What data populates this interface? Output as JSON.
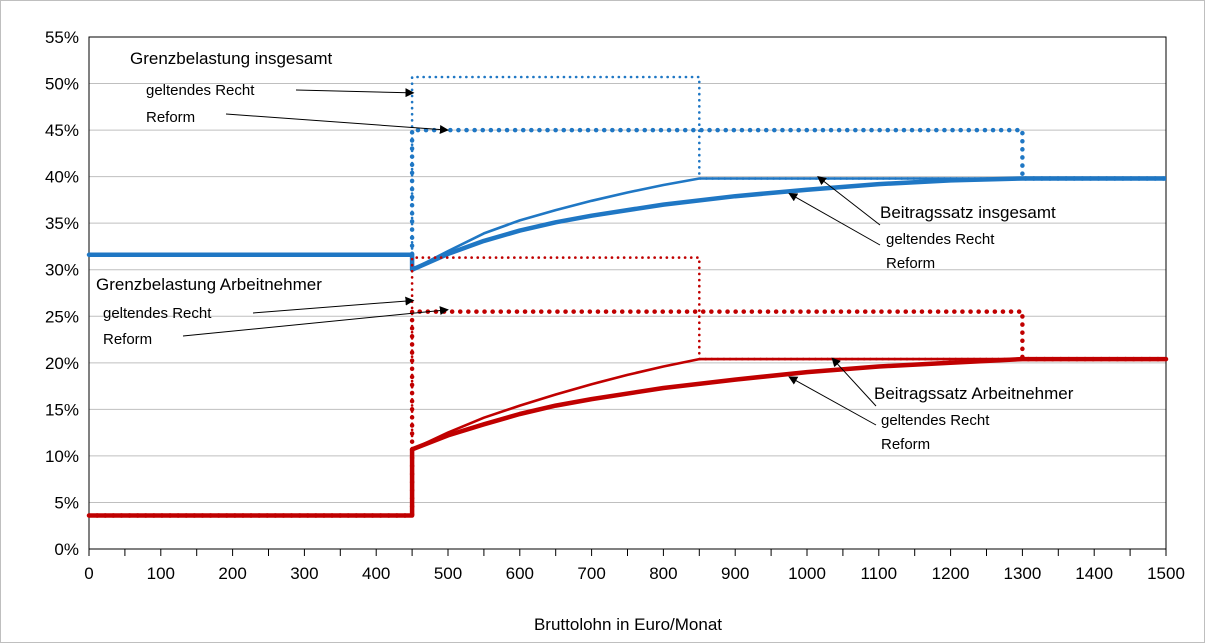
{
  "chart_data": {
    "type": "line",
    "title": "",
    "xlabel": "Bruttolohn in Euro/Monat",
    "ylabel": "",
    "xlim": [
      0,
      1500
    ],
    "ylim": [
      0,
      0.55
    ],
    "x_ticks": [
      0,
      100,
      200,
      300,
      400,
      500,
      600,
      700,
      800,
      900,
      1000,
      1100,
      1200,
      1300,
      1400,
      1500
    ],
    "x_tick_labels": [
      "0",
      "100",
      "200",
      "300",
      "400",
      "500",
      "600",
      "700",
      "800",
      "900",
      "1000",
      "1100",
      "1200",
      "1300",
      "1400",
      "1500"
    ],
    "y_ticks": [
      0,
      0.05,
      0.1,
      0.15,
      0.2,
      0.25,
      0.3,
      0.35,
      0.4,
      0.45,
      0.5,
      0.55
    ],
    "y_tick_labels": [
      "0%",
      "5%",
      "10%",
      "15%",
      "20%",
      "25%",
      "30%",
      "35%",
      "40%",
      "45%",
      "50%",
      "55%"
    ],
    "grid": "horizontal",
    "legend": "none",
    "colors": {
      "blue": "#1f77c4",
      "red": "#c00000"
    },
    "series": [
      {
        "key": "gi_recht",
        "group": "Grenzbelastung insgesamt",
        "variant": "geltendes Recht",
        "color": "#1f77c4",
        "style": "dotted",
        "width": 2.6,
        "x": [
          0,
          450,
          450,
          850,
          850,
          1500
        ],
        "y": [
          0.316,
          0.316,
          0.507,
          0.507,
          0.398,
          0.398
        ]
      },
      {
        "key": "gi_reform",
        "group": "Grenzbelastung insgesamt",
        "variant": "Reform",
        "color": "#1f77c4",
        "style": "dotted",
        "width": 4.5,
        "x": [
          0,
          450,
          450,
          1300,
          1300,
          1500
        ],
        "y": [
          0.316,
          0.316,
          0.45,
          0.45,
          0.398,
          0.398
        ]
      },
      {
        "key": "bi_recht",
        "group": "Beitragssatz insgesamt",
        "variant": "geltendes Recht",
        "color": "#1f77c4",
        "style": "solid",
        "width": 2.6,
        "x": [
          0,
          450,
          450,
          500,
          550,
          600,
          650,
          700,
          750,
          800,
          850,
          1500
        ],
        "y": [
          0.316,
          0.316,
          0.3,
          0.32,
          0.339,
          0.353,
          0.364,
          0.374,
          0.383,
          0.391,
          0.398,
          0.398
        ]
      },
      {
        "key": "bi_reform",
        "group": "Beitragssatz insgesamt",
        "variant": "Reform",
        "color": "#1f77c4",
        "style": "solid",
        "width": 4.5,
        "x": [
          0,
          450,
          450,
          500,
          550,
          600,
          650,
          700,
          800,
          900,
          1000,
          1100,
          1200,
          1300,
          1500
        ],
        "y": [
          0.316,
          0.316,
          0.3,
          0.317,
          0.331,
          0.342,
          0.351,
          0.358,
          0.37,
          0.379,
          0.386,
          0.392,
          0.396,
          0.398,
          0.398
        ]
      },
      {
        "key": "ga_recht",
        "group": "Grenzbelastung Arbeitnehmer",
        "variant": "geltendes Recht",
        "color": "#c00000",
        "style": "dotted",
        "width": 2.6,
        "x": [
          0,
          450,
          450,
          850,
          850,
          1500
        ],
        "y": [
          0.036,
          0.036,
          0.313,
          0.313,
          0.204,
          0.204
        ]
      },
      {
        "key": "ga_reform",
        "group": "Grenzbelastung Arbeitnehmer",
        "variant": "Reform",
        "color": "#c00000",
        "style": "dotted",
        "width": 4.5,
        "x": [
          0,
          450,
          450,
          1300,
          1300,
          1500
        ],
        "y": [
          0.036,
          0.036,
          0.255,
          0.255,
          0.204,
          0.204
        ]
      },
      {
        "key": "ba_recht",
        "group": "Beitragssatz Arbeitnehmer",
        "variant": "geltendes Recht",
        "color": "#c00000",
        "style": "solid",
        "width": 2.6,
        "x": [
          0,
          450,
          450,
          500,
          550,
          600,
          650,
          700,
          750,
          800,
          850,
          1500
        ],
        "y": [
          0.036,
          0.036,
          0.107,
          0.125,
          0.141,
          0.154,
          0.166,
          0.177,
          0.187,
          0.196,
          0.204,
          0.204
        ]
      },
      {
        "key": "ba_reform",
        "group": "Beitragssatz Arbeitnehmer",
        "variant": "Reform",
        "color": "#c00000",
        "style": "solid",
        "width": 4.5,
        "x": [
          0,
          450,
          450,
          500,
          550,
          600,
          650,
          700,
          800,
          900,
          1000,
          1100,
          1200,
          1300,
          1500
        ],
        "y": [
          0.036,
          0.036,
          0.107,
          0.122,
          0.134,
          0.145,
          0.154,
          0.161,
          0.173,
          0.182,
          0.19,
          0.196,
          0.2,
          0.204,
          0.204
        ]
      }
    ],
    "annotations": [
      {
        "title": "Grenzbelastung insgesamt",
        "items": [
          {
            "label": "geltendes Recht",
            "target_x": 452,
            "target_y": 0.49
          },
          {
            "label": "Reform",
            "target_x": 500,
            "target_y": 0.45
          }
        ]
      },
      {
        "title": "Grenzbelastung Arbeitnehmer",
        "items": [
          {
            "label": "geltendes Recht",
            "target_x": 452,
            "target_y": 0.267
          },
          {
            "label": "Reform",
            "target_x": 500,
            "target_y": 0.257
          }
        ]
      },
      {
        "title": "Beitragssatz insgesamt",
        "items": [
          {
            "label": "geltendes Recht",
            "target_x": 1015,
            "target_y": 0.4
          },
          {
            "label": "Reform",
            "target_x": 975,
            "target_y": 0.382
          }
        ]
      },
      {
        "title": "Beitragssatz Arbeitnehmer",
        "items": [
          {
            "label": "geltendes Recht",
            "target_x": 1035,
            "target_y": 0.205
          },
          {
            "label": "Reform",
            "target_x": 975,
            "target_y": 0.185
          }
        ]
      }
    ]
  }
}
